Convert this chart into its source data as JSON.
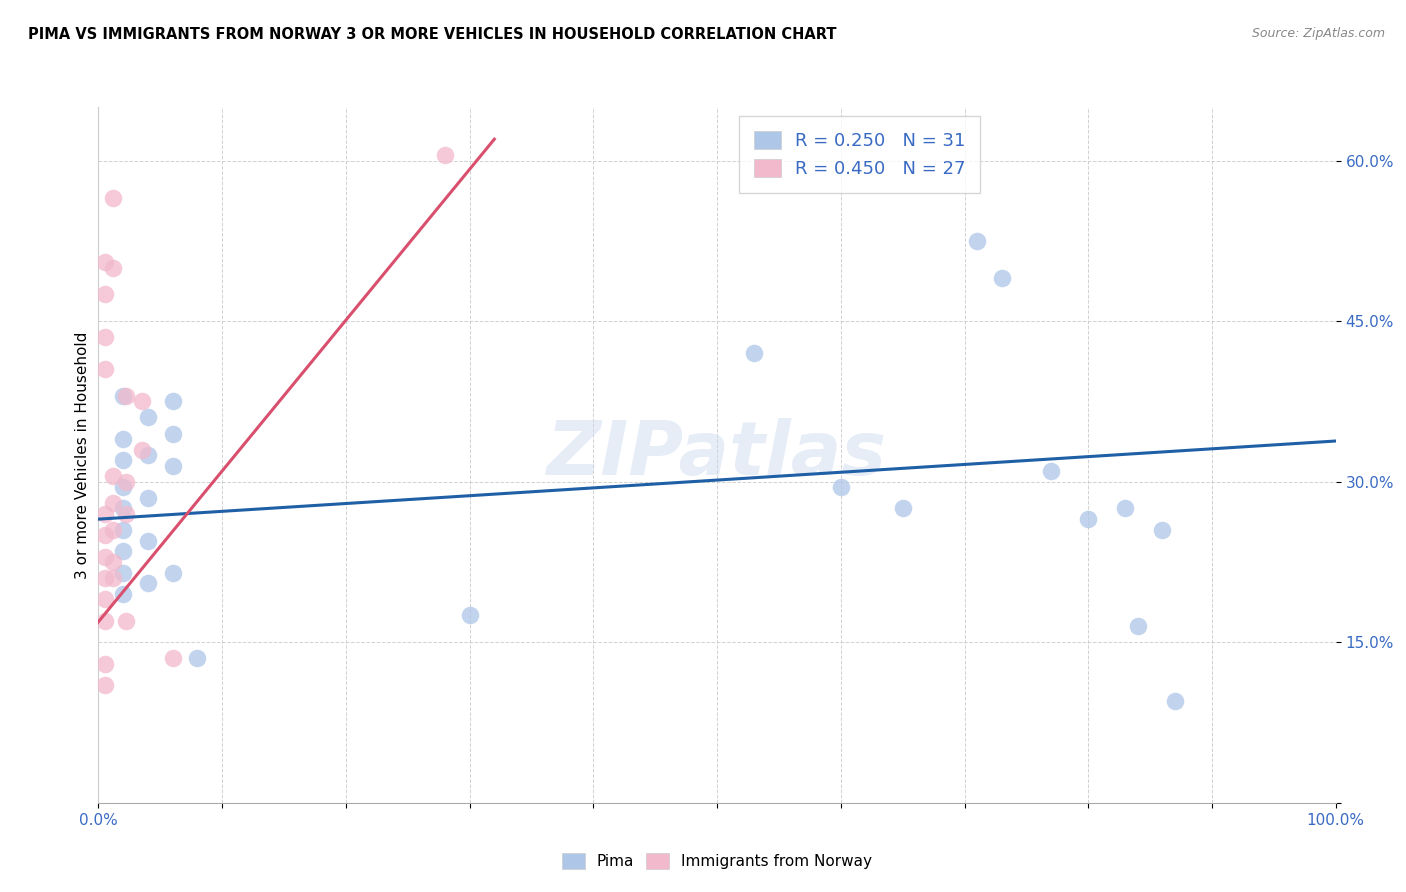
{
  "title": "PIMA VS IMMIGRANTS FROM NORWAY 3 OR MORE VEHICLES IN HOUSEHOLD CORRELATION CHART",
  "source": "Source: ZipAtlas.com",
  "ylabel": "3 or more Vehicles in Household",
  "watermark": "ZIPatlas",
  "xlim": [
    0.0,
    1.0
  ],
  "ylim": [
    0.0,
    0.65
  ],
  "xticks": [
    0.0,
    0.1,
    0.2,
    0.3,
    0.4,
    0.5,
    0.6,
    0.7,
    0.8,
    0.9,
    1.0
  ],
  "xticklabels": [
    "0.0%",
    "",
    "",
    "",
    "",
    "",
    "",
    "",
    "",
    "",
    "100.0%"
  ],
  "yticks": [
    0.0,
    0.15,
    0.3,
    0.45,
    0.6
  ],
  "yticklabels": [
    "",
    "15.0%",
    "30.0%",
    "45.0%",
    "60.0%"
  ],
  "legend_R1": "R = 0.250",
  "legend_N1": "N = 31",
  "legend_R2": "R = 0.450",
  "legend_N2": "N = 27",
  "pima_color": "#aec6e8",
  "norway_color": "#f2b8cc",
  "pima_line_color": "#1f5fa6",
  "norway_line_color": "#d94f6e",
  "pima_scatter": [
    [
      0.02,
      0.38
    ],
    [
      0.02,
      0.34
    ],
    [
      0.02,
      0.32
    ],
    [
      0.02,
      0.295
    ],
    [
      0.02,
      0.275
    ],
    [
      0.02,
      0.255
    ],
    [
      0.02,
      0.235
    ],
    [
      0.02,
      0.215
    ],
    [
      0.02,
      0.195
    ],
    [
      0.04,
      0.36
    ],
    [
      0.04,
      0.325
    ],
    [
      0.04,
      0.285
    ],
    [
      0.04,
      0.245
    ],
    [
      0.04,
      0.205
    ],
    [
      0.06,
      0.375
    ],
    [
      0.06,
      0.345
    ],
    [
      0.06,
      0.315
    ],
    [
      0.06,
      0.215
    ],
    [
      0.08,
      0.135
    ],
    [
      0.3,
      0.175
    ],
    [
      0.53,
      0.42
    ],
    [
      0.6,
      0.295
    ],
    [
      0.65,
      0.275
    ],
    [
      0.71,
      0.525
    ],
    [
      0.73,
      0.49
    ],
    [
      0.77,
      0.31
    ],
    [
      0.8,
      0.265
    ],
    [
      0.83,
      0.275
    ],
    [
      0.84,
      0.165
    ],
    [
      0.86,
      0.255
    ],
    [
      0.87,
      0.095
    ]
  ],
  "norway_scatter": [
    [
      0.005,
      0.505
    ],
    [
      0.005,
      0.475
    ],
    [
      0.005,
      0.435
    ],
    [
      0.005,
      0.405
    ],
    [
      0.005,
      0.27
    ],
    [
      0.005,
      0.25
    ],
    [
      0.005,
      0.23
    ],
    [
      0.005,
      0.21
    ],
    [
      0.005,
      0.19
    ],
    [
      0.005,
      0.17
    ],
    [
      0.005,
      0.13
    ],
    [
      0.005,
      0.11
    ],
    [
      0.012,
      0.565
    ],
    [
      0.012,
      0.5
    ],
    [
      0.012,
      0.305
    ],
    [
      0.012,
      0.28
    ],
    [
      0.012,
      0.255
    ],
    [
      0.012,
      0.225
    ],
    [
      0.012,
      0.21
    ],
    [
      0.022,
      0.38
    ],
    [
      0.022,
      0.3
    ],
    [
      0.022,
      0.27
    ],
    [
      0.022,
      0.17
    ],
    [
      0.035,
      0.375
    ],
    [
      0.035,
      0.33
    ],
    [
      0.06,
      0.135
    ],
    [
      0.28,
      0.605
    ]
  ],
  "pima_trendline": [
    [
      0.0,
      0.265
    ],
    [
      1.0,
      0.338
    ]
  ],
  "norway_trendline": [
    [
      -0.01,
      0.155
    ],
    [
      0.32,
      0.62
    ]
  ]
}
